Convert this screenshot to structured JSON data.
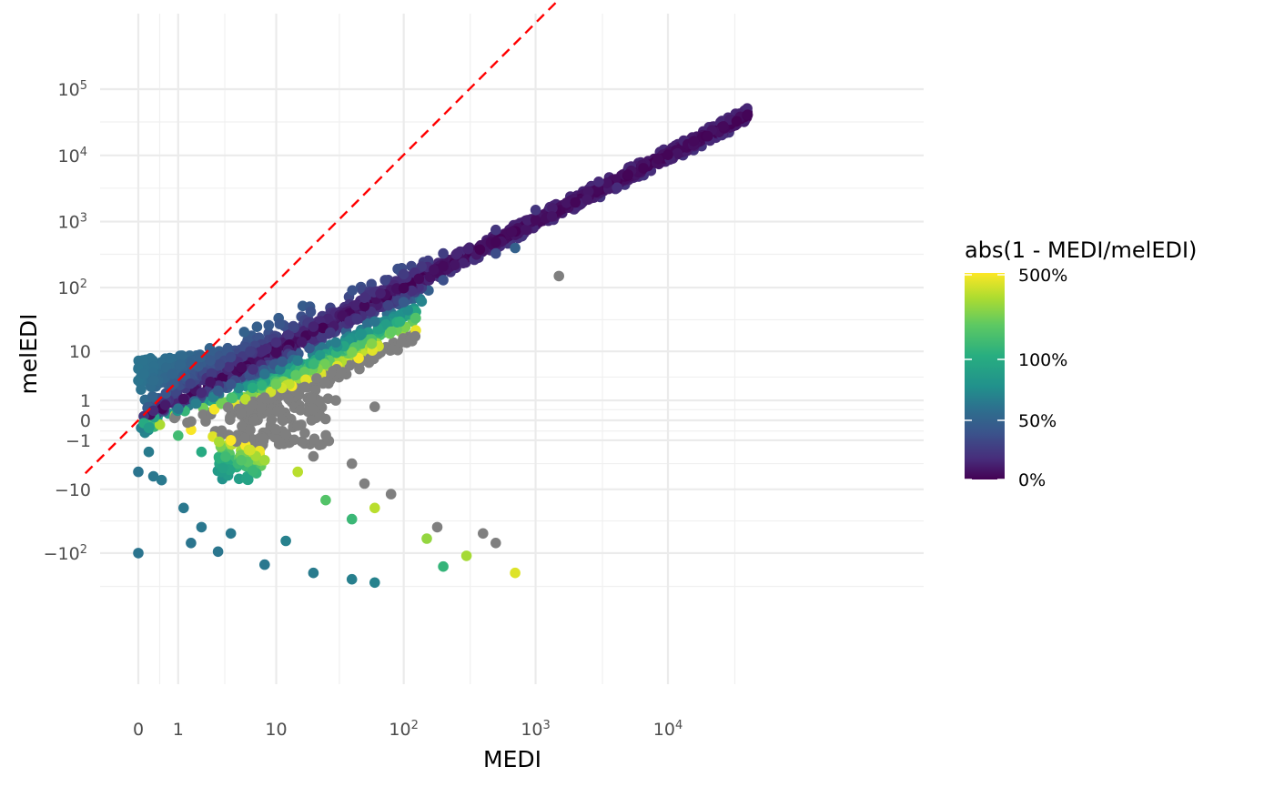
{
  "chart_data": {
    "type": "scatter",
    "title": "",
    "xlabel": "MEDI",
    "ylabel": "melEDI",
    "x_scale": "pseudo-log (signed log10)",
    "y_scale": "pseudo-log (signed log10)",
    "grid": true,
    "theme": "minimal",
    "x_ticks": [
      {
        "value": 0,
        "label": "0"
      },
      {
        "value": 1,
        "label": "1"
      },
      {
        "value": 10,
        "label": "10"
      },
      {
        "value": 100,
        "label": "10",
        "sup": "2"
      },
      {
        "value": 1000,
        "label": "10",
        "sup": "3"
      },
      {
        "value": 10000,
        "label": "10",
        "sup": "4"
      }
    ],
    "y_ticks": [
      {
        "value": 100000,
        "label": "10",
        "sup": "5"
      },
      {
        "value": 10000,
        "label": "10",
        "sup": "4"
      },
      {
        "value": 1000,
        "label": "10",
        "sup": "3"
      },
      {
        "value": 100,
        "label": "10",
        "sup": "2"
      },
      {
        "value": 10,
        "label": "10"
      },
      {
        "value": 1,
        "label": "1"
      },
      {
        "value": 0,
        "label": "0"
      },
      {
        "value": -1,
        "label": "−1"
      },
      {
        "value": -10,
        "label": "−10"
      },
      {
        "value": -100,
        "label": "−10",
        "sup": "2"
      }
    ],
    "reference_line": {
      "type": "identity (y = x)",
      "color": "#ff0000",
      "style": "dashed"
    },
    "color_scale": {
      "title": "abs(1 - MEDI/melEDI)",
      "palette": "viridis",
      "breaks": [
        {
          "value": 0,
          "label": "0%"
        },
        {
          "value": 0.5,
          "label": "50%"
        },
        {
          "value": 1,
          "label": "100%"
        },
        {
          "value": 5,
          "label": "500%"
        }
      ],
      "na_color": "#7f7f7f",
      "legend_position": "right"
    },
    "series": [
      {
        "points_note": "points are [MEDI, melEDI] in data units; colour encodes abs(1 - MEDI/melEDI)",
        "on_diagonal": [
          [
            0.1,
            0.15
          ],
          [
            0.3,
            0.4
          ],
          [
            0.6,
            0.7
          ],
          [
            1.2,
            1.1
          ],
          [
            2.5,
            2.8
          ],
          [
            5,
            5.3
          ],
          [
            10,
            9.5
          ],
          [
            20,
            21
          ],
          [
            50,
            52
          ],
          [
            100,
            98
          ],
          [
            200,
            210
          ],
          [
            500,
            490
          ],
          [
            1000,
            1050
          ],
          [
            2000,
            1950
          ],
          [
            5000,
            5100
          ],
          [
            10000,
            10200
          ],
          [
            20000,
            19500
          ],
          [
            40000,
            41000
          ]
        ],
        "upper_band": [
          [
            0,
            3
          ],
          [
            0,
            5
          ],
          [
            0.1,
            4
          ],
          [
            0.3,
            3
          ],
          [
            0.8,
            4
          ],
          [
            1.5,
            6
          ],
          [
            2.5,
            7
          ],
          [
            4,
            8
          ],
          [
            6,
            10
          ],
          [
            10,
            14
          ],
          [
            20,
            25
          ],
          [
            50,
            70
          ],
          [
            100,
            160
          ],
          [
            200,
            330
          ],
          [
            500,
            750
          ],
          [
            1000,
            1500
          ],
          [
            3000,
            4000
          ]
        ],
        "lower_band": [
          [
            2,
            1.6
          ],
          [
            4,
            2.5
          ],
          [
            8,
            4
          ],
          [
            15,
            7
          ],
          [
            30,
            14
          ],
          [
            60,
            30
          ],
          [
            100,
            60
          ],
          [
            200,
            130
          ],
          [
            500,
            330
          ],
          [
            700,
            400
          ]
        ],
        "grey_na": [
          [
            1,
            0.5
          ],
          [
            3,
            1.8
          ],
          [
            5,
            0.3
          ],
          [
            6,
            -0.4
          ],
          [
            8,
            1.2
          ],
          [
            10,
            2.5
          ],
          [
            12,
            -0.6
          ],
          [
            15,
            -0.2
          ],
          [
            20,
            -2.5
          ],
          [
            30,
            1
          ],
          [
            40,
            -3.5
          ],
          [
            50,
            -8
          ],
          [
            60,
            0.6
          ],
          [
            80,
            -12
          ],
          [
            150,
            -60
          ],
          [
            400,
            -50
          ],
          [
            500,
            -70
          ],
          [
            1500,
            150
          ]
        ],
        "negative_teal": [
          [
            0,
            -100
          ],
          [
            0,
            -5
          ],
          [
            0.05,
            -0.3
          ],
          [
            0.2,
            -2
          ],
          [
            0.3,
            -6
          ],
          [
            0.5,
            -7
          ],
          [
            1.2,
            -20
          ],
          [
            1.5,
            -70
          ],
          [
            2,
            -40
          ],
          [
            3,
            -95
          ],
          [
            4,
            -50
          ],
          [
            8,
            -150
          ],
          [
            12,
            -65
          ],
          [
            20,
            -200
          ],
          [
            40,
            -250
          ],
          [
            60,
            -280
          ]
        ],
        "negative_yellow": [
          [
            0.1,
            -0.1
          ],
          [
            0.2,
            -0.3
          ],
          [
            1,
            -0.7
          ],
          [
            2,
            -2
          ],
          [
            4,
            -1
          ],
          [
            5,
            -3
          ],
          [
            6,
            -1.8
          ],
          [
            8,
            -3
          ],
          [
            15,
            -5
          ],
          [
            25,
            -15
          ],
          [
            40,
            -30
          ],
          [
            60,
            -20
          ],
          [
            180,
            -40
          ],
          [
            200,
            -160
          ],
          [
            300,
            -110
          ],
          [
            700,
            -200
          ]
        ]
      }
    ]
  }
}
